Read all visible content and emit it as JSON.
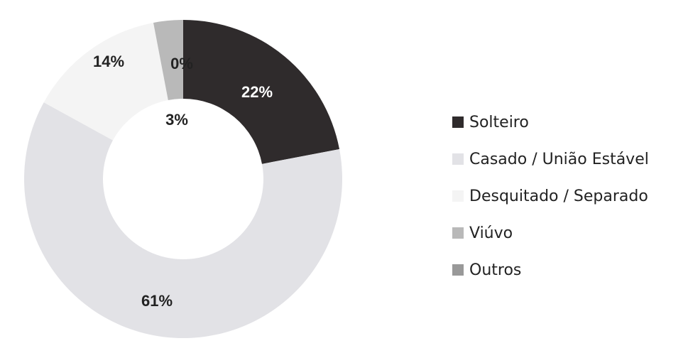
{
  "chart_data": {
    "type": "pie",
    "subtype": "donut",
    "title": "",
    "categories": [
      "Solteiro",
      "Casado / União Estável",
      "Desquitado / Separado",
      "Viúvo",
      "Outros"
    ],
    "values": [
      22,
      61,
      14,
      3,
      0
    ],
    "labels": [
      "22%",
      "61%",
      "14%",
      "3%",
      "0%"
    ],
    "colors": [
      "#2f2b2c",
      "#e2e2e6",
      "#f4f4f4",
      "#b9b9b9",
      "#999999"
    ],
    "label_colors": [
      "#ffffff",
      "#222222",
      "#222222",
      "#222222",
      "#222222"
    ],
    "unit": "%",
    "legend_position": "right"
  }
}
